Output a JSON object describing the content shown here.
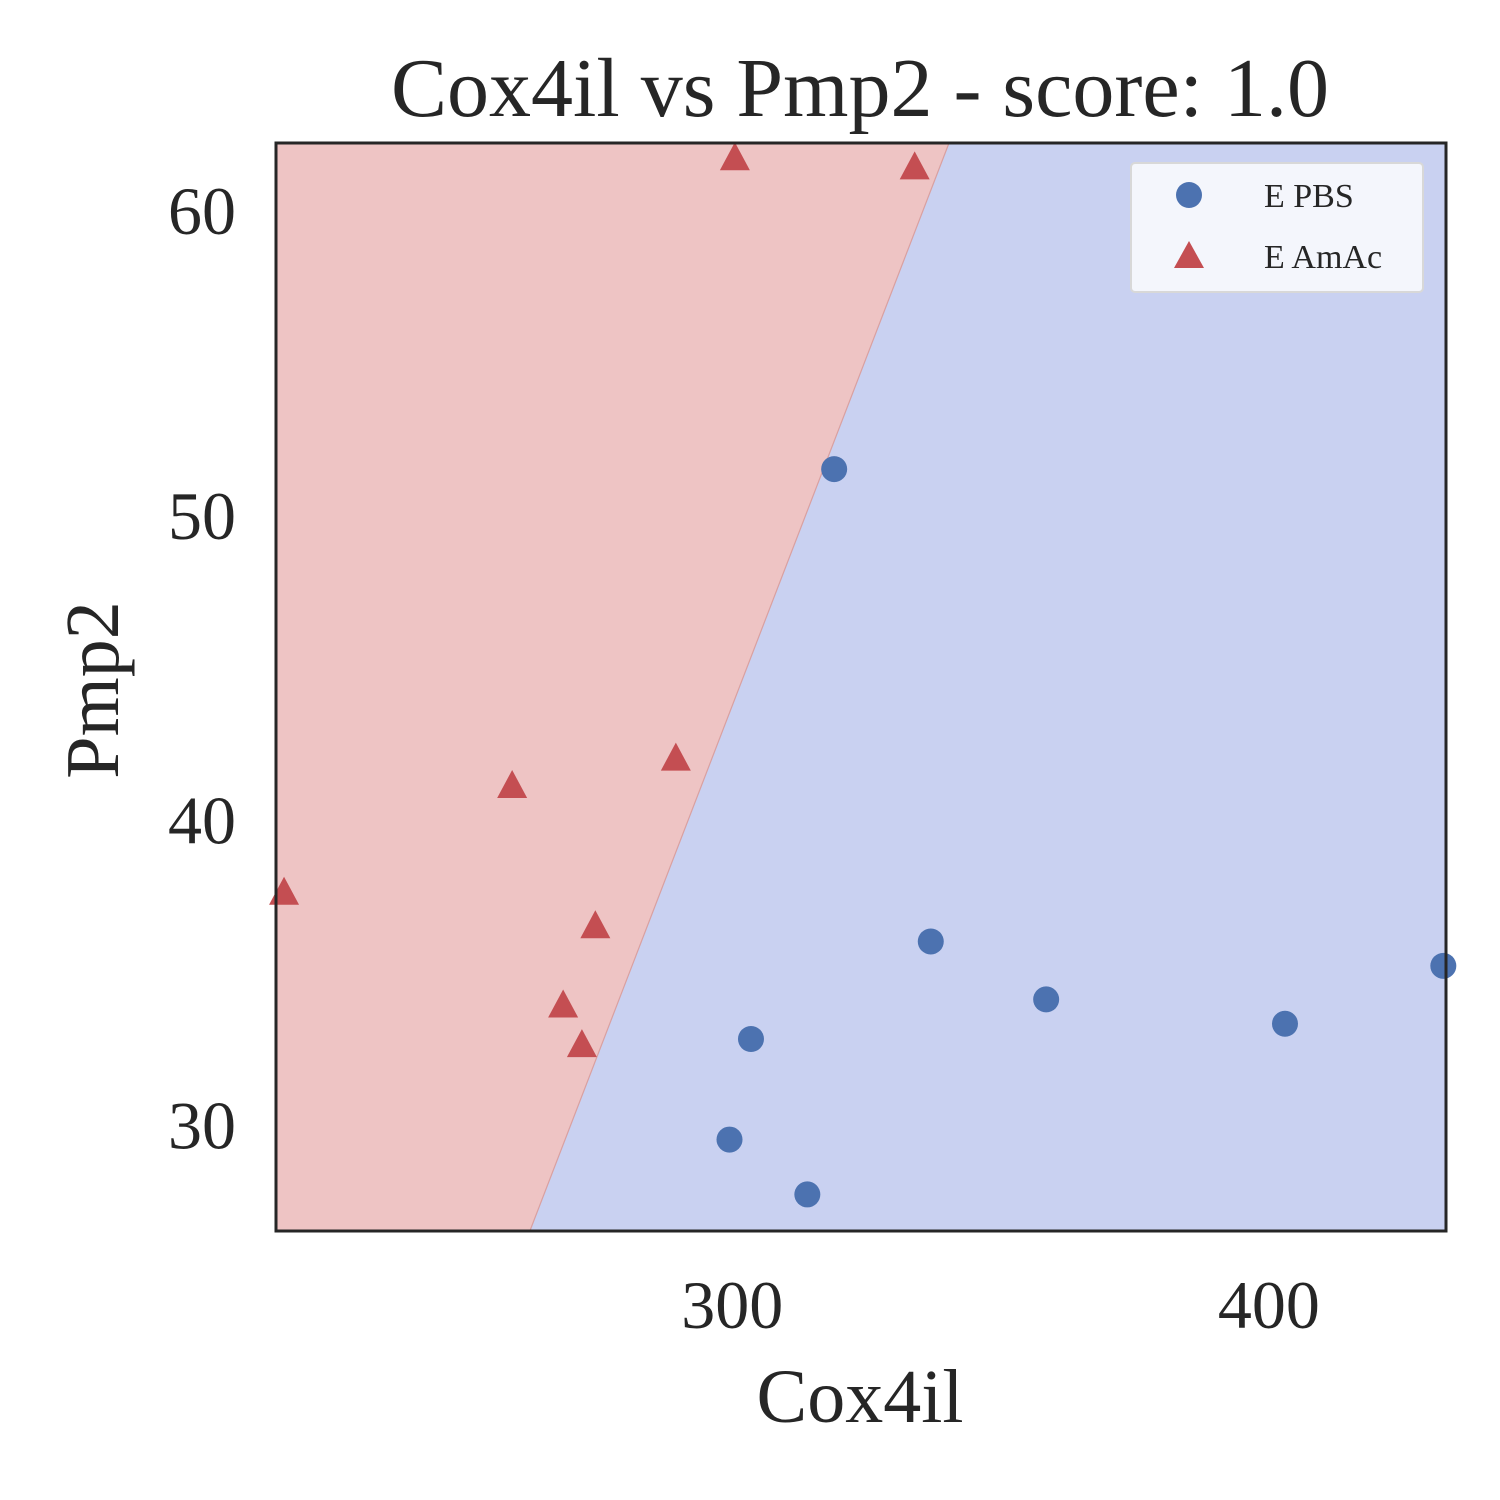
{
  "chart_data": {
    "type": "scatter",
    "title": "Cox4il vs Pmp2 - score: 1.0",
    "xlabel": "Cox4il",
    "ylabel": "Pmp2",
    "xlim": [
      215,
      433
    ],
    "ylim": [
      26.5,
      62.2
    ],
    "xticks": [
      300,
      400
    ],
    "yticks": [
      30,
      40,
      50,
      60
    ],
    "grid": false,
    "legend": "top-right",
    "decision_boundary": {
      "points": [
        [
          262.3,
          26.5
        ],
        [
          340.4,
          62.2
        ]
      ],
      "left_region_class": "E AmAc",
      "right_region_class": "E PBS",
      "left_color": "#eec4c4",
      "right_color": "#c9d1f1"
    },
    "series": [
      {
        "name": "E PBS",
        "marker": "circle",
        "color": "#4c72b0",
        "points": [
          [
            299.5,
            29.5
          ],
          [
            303.5,
            32.8
          ],
          [
            314.0,
            27.7
          ],
          [
            319.0,
            51.5
          ],
          [
            337.0,
            36.0
          ],
          [
            358.5,
            34.1
          ],
          [
            403.0,
            33.3
          ],
          [
            432.5,
            35.2
          ]
        ]
      },
      {
        "name": "E AmAc",
        "marker": "triangle",
        "color": "#c44e52",
        "points": [
          [
            216.5,
            37.6
          ],
          [
            259.0,
            41.1
          ],
          [
            268.5,
            33.9
          ],
          [
            272.0,
            32.6
          ],
          [
            274.5,
            36.5
          ],
          [
            289.5,
            42.0
          ],
          [
            300.5,
            61.7
          ],
          [
            334.0,
            61.4
          ]
        ]
      }
    ]
  }
}
